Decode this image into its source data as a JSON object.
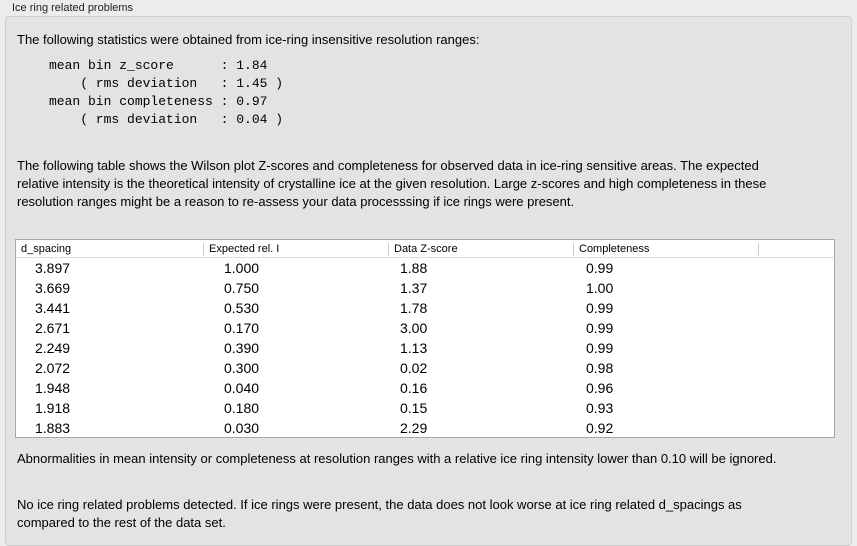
{
  "group_title": "Ice ring related problems",
  "intro": "The following statistics were obtained from ice-ring insensitive resolution ranges:",
  "stats": [
    {
      "label": "mean bin z_score      ",
      "value": ": 1.84"
    },
    {
      "label": "    ( rms deviation   ",
      "value": ": 1.45 )"
    },
    {
      "label": "mean bin completeness ",
      "value": ": 0.97"
    },
    {
      "label": "    ( rms deviation   ",
      "value": ": 0.04 )"
    }
  ],
  "table_intro": "The following table shows the Wilson plot Z-scores and completeness for observed data in ice-ring sensitive areas. The expected relative intensity is the theoretical intensity of crystalline ice at the given resolution. Large z-scores and high completeness in these resolution ranges might be a reason to re-assess your data processsing if ice rings were present.",
  "table": {
    "headers": [
      "d_spacing",
      "Expected rel. I",
      "Data Z-score",
      "Completeness"
    ],
    "rows": [
      [
        "3.897",
        "1.000",
        "1.88",
        "0.99"
      ],
      [
        "3.669",
        "0.750",
        "1.37",
        "1.00"
      ],
      [
        "3.441",
        "0.530",
        "1.78",
        "0.99"
      ],
      [
        "2.671",
        "0.170",
        "3.00",
        "0.99"
      ],
      [
        "2.249",
        "0.390",
        "1.13",
        "0.99"
      ],
      [
        "2.072",
        "0.300",
        "0.02",
        "0.98"
      ],
      [
        "1.948",
        "0.040",
        "0.16",
        "0.96"
      ],
      [
        "1.918",
        "0.180",
        "0.15",
        "0.93"
      ],
      [
        "1.883",
        "0.030",
        "2.29",
        "0.92"
      ]
    ]
  },
  "note": "Abnormalities in mean intensity or completeness at resolution ranges with a relative ice ring intensity lower than 0.10 will be ignored.",
  "conclusion": "No ice ring related problems detected. If ice rings were present, the data does not look worse at ice ring related d_spacings as compared to the rest of the data set."
}
